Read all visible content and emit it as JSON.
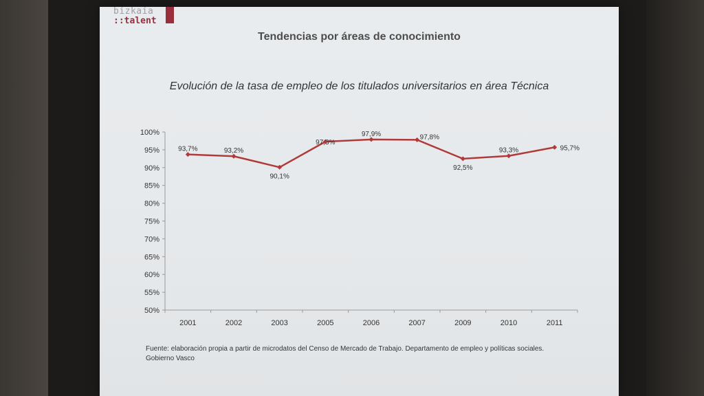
{
  "logo": {
    "line1": "bizkaia",
    "line2": "::talent"
  },
  "slide_title": "Tendencias por áreas de conocimiento",
  "source_note": "Fuente: elaboración propia a partir de microdatos del Censo de Mercado de Trabajo. Departamento de empleo y políticas sociales. Gobierno Vasco",
  "colors": {
    "series": "#b03a3a",
    "axis": "#999999"
  },
  "chart_data": {
    "type": "line",
    "title": "Evolución de la tasa de empleo de los titulados universitarios en área Técnica",
    "categories": [
      "2001",
      "2002",
      "2003",
      "2005",
      "2006",
      "2007",
      "2009",
      "2010",
      "2011"
    ],
    "series": [
      {
        "values": [
          93.7,
          93.2,
          90.1,
          97.3,
          97.9,
          97.8,
          92.5,
          93.3,
          95.7
        ],
        "labels": [
          "93,7%",
          "93,2%",
          "90,1%",
          "97,3%",
          "97,9%",
          "97,8%",
          "92,5%",
          "93,3%",
          "95,7%"
        ]
      }
    ],
    "ylim": [
      50,
      100
    ],
    "yticks": [
      100,
      95,
      90,
      85,
      80,
      75,
      70,
      65,
      60,
      55,
      50
    ],
    "ytick_labels": [
      "100%",
      "95%",
      "90%",
      "85%",
      "80%",
      "75%",
      "70%",
      "65%",
      "60%",
      "55%",
      "50%"
    ],
    "grid": false,
    "legend": "none"
  }
}
